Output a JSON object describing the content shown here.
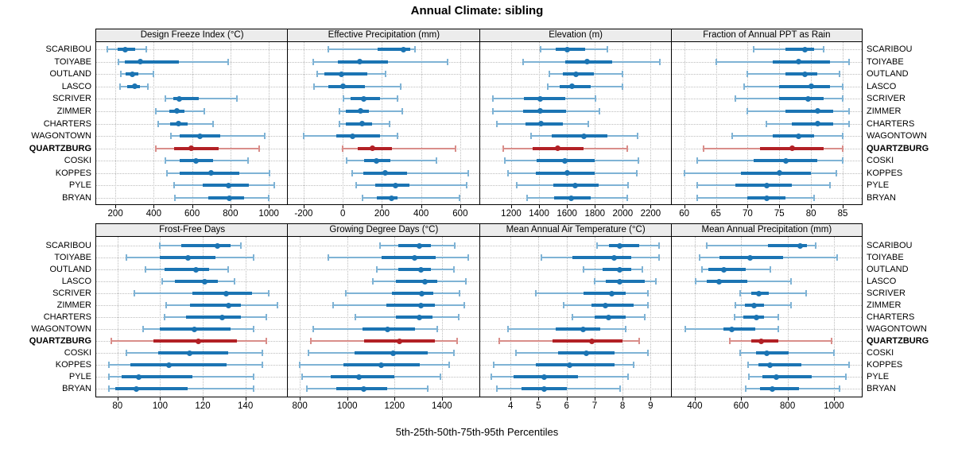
{
  "title": "Annual Climate: sibling",
  "caption": "5th-25th-50th-75th-95th Percentiles",
  "colors": {
    "blue_dark": "#1b74b3",
    "blue_light": "#7fb3d5",
    "red_dark": "#b22025",
    "red_light": "#d98e8a",
    "grid": "#bdbdbd",
    "strip_bg": "#ececec",
    "border": "#000000"
  },
  "chart_data": {
    "type": "dotplot-percentiles",
    "percentiles": [
      5,
      25,
      50,
      75,
      95
    ],
    "layout": "lattice 2 rows x 4 cols, shared site rows, site labels on both sides",
    "sites": [
      "SCARIBOU",
      "TOIYABE",
      "OUTLAND",
      "LASCO",
      "SCRIVER",
      "ZIMMER",
      "CHARTERS",
      "WAGONTOWN",
      "QUARTZBURG",
      "COSKI",
      "KOPPES",
      "PYLE",
      "BRYAN"
    ],
    "highlight_site": "QUARTZBURG",
    "panels": [
      {
        "title": "Design Freeze Index (°C)",
        "xlim": [
          100,
          1100
        ],
        "ticks": [
          200,
          400,
          600,
          800,
          1000
        ],
        "values": [
          [
            160,
            210,
            250,
            305,
            360
          ],
          [
            215,
            250,
            330,
            530,
            790
          ],
          [
            230,
            255,
            290,
            320,
            400
          ],
          [
            225,
            260,
            300,
            330,
            370
          ],
          [
            460,
            500,
            535,
            635,
            835
          ],
          [
            410,
            480,
            520,
            560,
            665
          ],
          [
            425,
            485,
            530,
            575,
            710
          ],
          [
            490,
            535,
            640,
            745,
            980
          ],
          [
            410,
            505,
            595,
            740,
            950
          ],
          [
            460,
            535,
            620,
            710,
            890
          ],
          [
            470,
            535,
            700,
            845,
            1005
          ],
          [
            505,
            655,
            790,
            895,
            1030
          ],
          [
            510,
            685,
            795,
            870,
            1000
          ]
        ]
      },
      {
        "title": "Effective Precipitation (mm)",
        "xlim": [
          -280,
          700
        ],
        "ticks": [
          -200,
          0,
          200,
          400,
          600
        ],
        "values": [
          [
            -75,
            180,
            310,
            345,
            370
          ],
          [
            -150,
            -25,
            85,
            230,
            535
          ],
          [
            -130,
            -95,
            -5,
            125,
            220
          ],
          [
            -145,
            -75,
            0,
            115,
            295
          ],
          [
            5,
            40,
            105,
            190,
            280
          ],
          [
            -15,
            15,
            90,
            135,
            305
          ],
          [
            -15,
            15,
            100,
            150,
            240
          ],
          [
            -200,
            -35,
            50,
            190,
            280
          ],
          [
            0,
            75,
            150,
            250,
            575
          ],
          [
            20,
            110,
            170,
            245,
            480
          ],
          [
            50,
            105,
            215,
            330,
            640
          ],
          [
            70,
            165,
            270,
            340,
            635
          ],
          [
            100,
            175,
            250,
            280,
            595
          ]
        ]
      },
      {
        "title": "Elevation (m)",
        "xlim": [
          975,
          2350
        ],
        "ticks": [
          1200,
          1400,
          1600,
          1800,
          2000,
          2200
        ],
        "values": [
          [
            1410,
            1520,
            1600,
            1730,
            1890
          ],
          [
            1285,
            1585,
            1745,
            1925,
            2265
          ],
          [
            1475,
            1570,
            1665,
            1795,
            2000
          ],
          [
            1460,
            1550,
            1635,
            1770,
            2000
          ],
          [
            1070,
            1290,
            1410,
            1590,
            1805
          ],
          [
            1070,
            1285,
            1410,
            1595,
            1835
          ],
          [
            1095,
            1300,
            1415,
            1570,
            1755
          ],
          [
            1345,
            1490,
            1720,
            1890,
            2105
          ],
          [
            1145,
            1355,
            1535,
            1720,
            2035
          ],
          [
            1155,
            1385,
            1585,
            1800,
            2110
          ],
          [
            1175,
            1375,
            1600,
            1800,
            2100
          ],
          [
            1240,
            1500,
            1660,
            1825,
            2040
          ],
          [
            1315,
            1510,
            1630,
            1770,
            2035
          ]
        ]
      },
      {
        "title": "Fraction of Annual PPT as Rain",
        "xlim": [
          58,
          88
        ],
        "ticks": [
          60,
          65,
          70,
          75,
          80,
          85
        ],
        "values": [
          [
            71,
            76,
            79,
            80.5,
            82
          ],
          [
            65,
            74,
            78,
            83,
            86
          ],
          [
            70,
            76,
            79,
            81,
            84.5
          ],
          [
            69.5,
            75,
            80,
            83,
            85
          ],
          [
            68,
            75,
            79.5,
            82,
            85
          ],
          [
            70,
            76,
            81,
            83.5,
            86
          ],
          [
            73,
            77,
            81,
            83.5,
            86
          ],
          [
            67.5,
            74,
            78,
            80.5,
            85
          ],
          [
            63,
            72,
            77,
            82,
            85
          ],
          [
            62,
            71,
            76,
            81,
            85
          ],
          [
            60,
            69,
            75,
            80,
            84
          ],
          [
            62,
            68,
            73,
            77,
            83
          ],
          [
            62,
            70,
            73,
            76,
            80.5
          ]
        ]
      },
      {
        "title": "Frost-Free Days",
        "xlim": [
          70,
          160
        ],
        "ticks": [
          80,
          100,
          120,
          140
        ],
        "values": [
          [
            100,
            110,
            127,
            133,
            138
          ],
          [
            84,
            100,
            113,
            126,
            144
          ],
          [
            93,
            102,
            117,
            123,
            132
          ],
          [
            101,
            107,
            121,
            127,
            135
          ],
          [
            88,
            115,
            131,
            143,
            151
          ],
          [
            103,
            114,
            132,
            138,
            155
          ],
          [
            102,
            112,
            129,
            138,
            150
          ],
          [
            92,
            100,
            116,
            133,
            144
          ],
          [
            77,
            97,
            118,
            136,
            150
          ],
          [
            84,
            99,
            114,
            132,
            148
          ],
          [
            76,
            86,
            104,
            131,
            148
          ],
          [
            76,
            82,
            90,
            115,
            144
          ],
          [
            76,
            79,
            89,
            113,
            144
          ]
        ]
      },
      {
        "title": "Growing Degree Days (°C)",
        "xlim": [
          750,
          1560
        ],
        "ticks": [
          800,
          1000,
          1200,
          1400
        ],
        "values": [
          [
            1140,
            1215,
            1305,
            1355,
            1455
          ],
          [
            920,
            1145,
            1285,
            1375,
            1510
          ],
          [
            1125,
            1215,
            1310,
            1355,
            1450
          ],
          [
            1110,
            1205,
            1330,
            1380,
            1500
          ],
          [
            995,
            1190,
            1315,
            1365,
            1475
          ],
          [
            940,
            1165,
            1310,
            1370,
            1495
          ],
          [
            1035,
            1205,
            1305,
            1360,
            1470
          ],
          [
            855,
            1065,
            1170,
            1285,
            1380
          ],
          [
            845,
            1070,
            1220,
            1370,
            1465
          ],
          [
            835,
            1030,
            1195,
            1340,
            1450
          ],
          [
            800,
            985,
            1145,
            1305,
            1430
          ],
          [
            810,
            930,
            1050,
            1200,
            1395
          ],
          [
            830,
            955,
            1070,
            1170,
            1340
          ]
        ]
      },
      {
        "title": "Mean Annual Air Temperature (°C)",
        "xlim": [
          2.9,
          9.75
        ],
        "ticks": [
          4,
          5,
          6,
          7,
          8,
          9
        ],
        "values": [
          [
            7.1,
            7.5,
            7.9,
            8.6,
            9.3
          ],
          [
            5.1,
            6.2,
            7.7,
            8.3,
            9.3
          ],
          [
            6.6,
            7.3,
            7.9,
            8.3,
            8.7
          ],
          [
            7.0,
            7.4,
            7.9,
            8.8,
            9.2
          ],
          [
            4.9,
            6.6,
            7.6,
            8.1,
            8.9
          ],
          [
            5.9,
            6.9,
            7.4,
            8.4,
            8.9
          ],
          [
            6.2,
            7.0,
            7.5,
            8.1,
            8.8
          ],
          [
            3.9,
            5.6,
            6.6,
            7.2,
            8.1
          ],
          [
            3.6,
            5.5,
            6.9,
            8.0,
            8.6
          ],
          [
            4.2,
            5.7,
            6.7,
            7.7,
            8.9
          ],
          [
            3.4,
            4.9,
            6.1,
            7.7,
            8.4
          ],
          [
            3.3,
            4.1,
            5.2,
            6.4,
            8.2
          ],
          [
            3.5,
            4.4,
            5.2,
            6.0,
            7.9
          ]
        ]
      },
      {
        "title": "Mean Annual Precipitation (mm)",
        "xlim": [
          300,
          1120
        ],
        "ticks": [
          400,
          600,
          800,
          1000
        ],
        "values": [
          [
            450,
            715,
            855,
            885,
            920
          ],
          [
            420,
            505,
            640,
            780,
            1015
          ],
          [
            430,
            460,
            525,
            620,
            725
          ],
          [
            405,
            450,
            505,
            625,
            815
          ],
          [
            595,
            645,
            675,
            720,
            880
          ],
          [
            575,
            615,
            655,
            700,
            815
          ],
          [
            570,
            610,
            665,
            700,
            760
          ],
          [
            360,
            525,
            560,
            660,
            760
          ],
          [
            550,
            645,
            685,
            760,
            990
          ],
          [
            595,
            665,
            710,
            805,
            1000
          ],
          [
            630,
            675,
            725,
            860,
            1065
          ],
          [
            635,
            690,
            750,
            905,
            1050
          ],
          [
            620,
            680,
            735,
            850,
            1025
          ]
        ]
      }
    ]
  }
}
